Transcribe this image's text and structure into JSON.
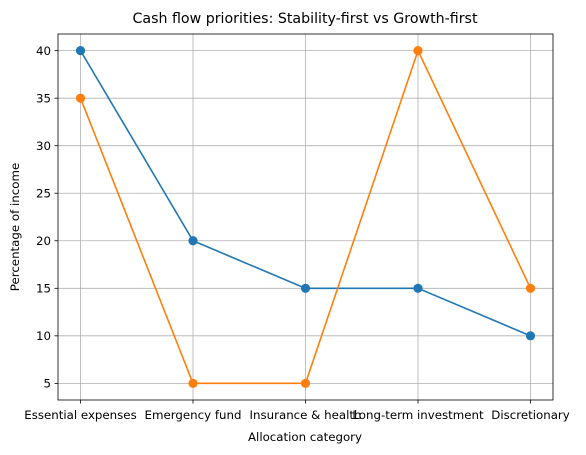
{
  "chart_data": {
    "type": "line",
    "title": "Cash flow priorities: Stability-first vs Growth-first",
    "xlabel": "Allocation category",
    "ylabel": "Percentage of income",
    "categories": [
      "Essential expenses",
      "Emergency fund",
      "Insurance & health",
      "Long-term investment",
      "Discretionary"
    ],
    "ylim": [
      3.25,
      41.75
    ],
    "yticks": [
      5,
      10,
      15,
      20,
      25,
      30,
      35,
      40
    ],
    "grid": true,
    "series": [
      {
        "color": "#1f77b4",
        "values": [
          40,
          20,
          15,
          15,
          10
        ]
      },
      {
        "color": "#ff7f0e",
        "values": [
          35,
          5,
          5,
          40,
          15
        ]
      }
    ]
  }
}
